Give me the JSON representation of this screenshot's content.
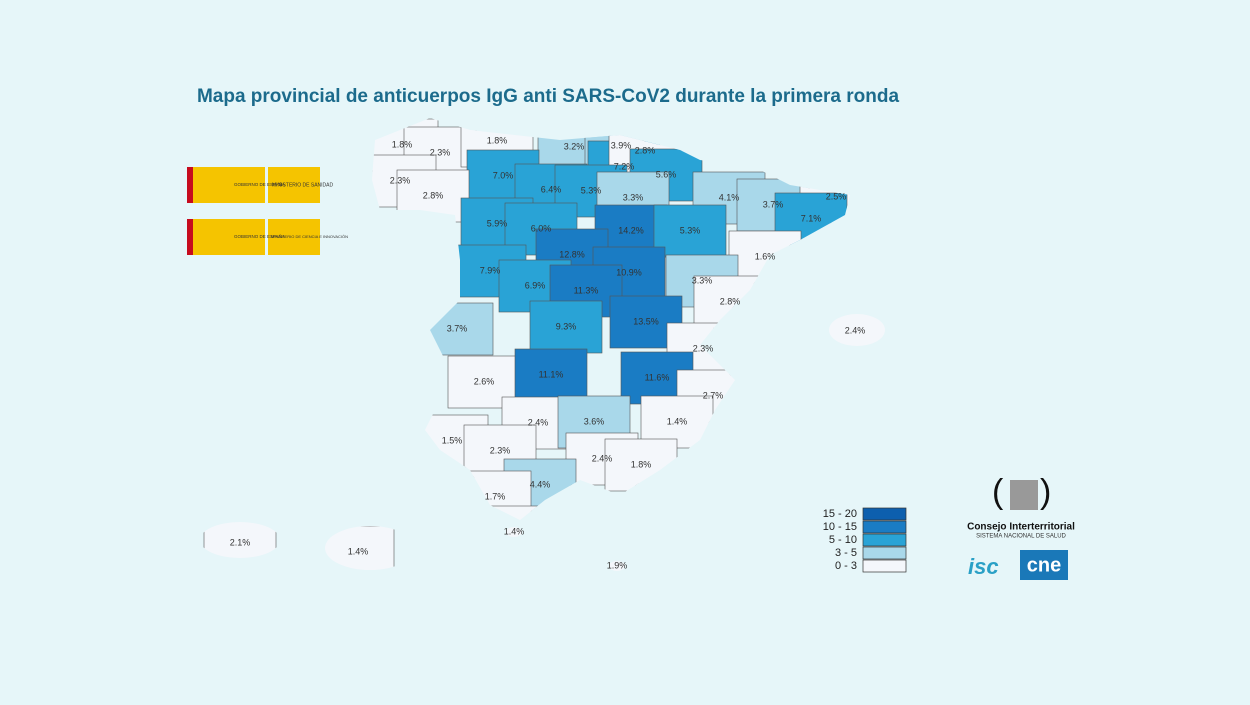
{
  "chart_data": {
    "type": "map",
    "title": "Mapa provincial de anticuerpos IgG anti SARS-CoV2 durante la primera ronda",
    "values": [
      1.8,
      2.3,
      1.8,
      3.2,
      3.9,
      7.2,
      2.8,
      7.0,
      6.4,
      5.3,
      5.6,
      3.3,
      4.1,
      3.7,
      2.5,
      7.1,
      2.3,
      2.8,
      5.9,
      6.0,
      14.2,
      5.3,
      12.8,
      10.9,
      1.6,
      7.9,
      6.9,
      11.3,
      3.3,
      2.8,
      3.7,
      9.3,
      13.5,
      2.4,
      2.3,
      2.6,
      11.1,
      11.6,
      2.7,
      2.4,
      3.6,
      1.4,
      1.5,
      2.3,
      2.4,
      1.8,
      4.4,
      1.7,
      1.4,
      2.1,
      1.4,
      1.9
    ],
    "value_labels": [
      "1.8%",
      "2.3%",
      "1.8%",
      "3.2%",
      "3.9%",
      "7.2%",
      "2.8%",
      "7.0%",
      "6.4%",
      "5.3%",
      "5.6%",
      "3.3%",
      "4.1%",
      "3.7%",
      "2.5%",
      "7.1%",
      "2.3%",
      "2.8%",
      "5.9%",
      "6.0%",
      "14.2%",
      "5.3%",
      "12.8%",
      "10.9%",
      "1.6%",
      "7.9%",
      "6.9%",
      "11.3%",
      "3.3%",
      "2.8%",
      "3.7%",
      "9.3%",
      "13.5%",
      "2.4%",
      "2.3%",
      "2.6%",
      "11.1%",
      "11.6%",
      "2.7%",
      "2.4%",
      "3.6%",
      "1.4%",
      "1.5%",
      "2.3%",
      "2.4%",
      "1.8%",
      "4.4%",
      "1.7%",
      "1.4%",
      "2.1%",
      "1.4%",
      "1.9%"
    ],
    "legend": {
      "bins": [
        0,
        3,
        5,
        10,
        15,
        20
      ],
      "labels": [
        "0 - 3",
        "3 - 5",
        "5 - 10",
        "10 - 15",
        "15 - 20"
      ],
      "colors": [
        "#f4f7fb",
        "#a9d8ea",
        "#29a3d6",
        "#1a7cc4",
        "#0d5fae"
      ]
    }
  },
  "logos": {
    "gobierno": "GOBIERNO DE ESPAÑA",
    "sanidad": "MINISTERIO DE SANIDAD",
    "ciencia": "MINISTERIO DE CIENCIA E INNOVACIÓN",
    "consejo": "Consejo Interterritorial",
    "sns": "SISTEMA NACIONAL DE SALUD",
    "isciii": "isc",
    "cne": "cne"
  }
}
